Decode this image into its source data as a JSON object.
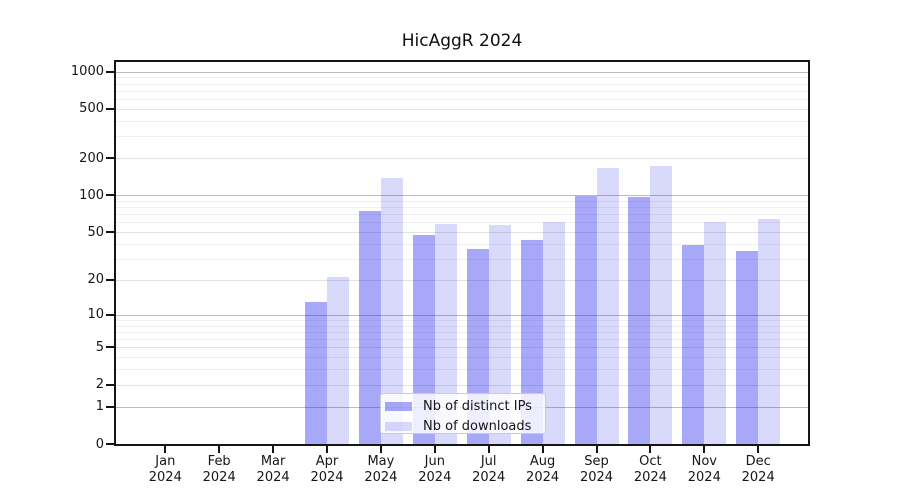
{
  "title": "HicAggR 2024",
  "chart_data": {
    "type": "bar",
    "title": "HicAggR 2024",
    "xlabel": "",
    "ylabel": "",
    "categories": [
      "Jan 2024",
      "Feb 2024",
      "Mar 2024",
      "Apr 2024",
      "May 2024",
      "Jun 2024",
      "Jul 2024",
      "Aug 2024",
      "Sep 2024",
      "Oct 2024",
      "Nov 2024",
      "Dec 2024"
    ],
    "series": [
      {
        "name": "Nb of distinct IPs",
        "color": "rgba(20,20,235,0.37)",
        "values": [
          0,
          0,
          0,
          13,
          74,
          47,
          36,
          43,
          99,
          97,
          39,
          35
        ]
      },
      {
        "name": "Nb of downloads",
        "color": "rgba(20,20,235,0.16)",
        "values": [
          0,
          0,
          0,
          21,
          138,
          58,
          57,
          61,
          168,
          173,
          61,
          64
        ]
      }
    ],
    "yscale": "log1p",
    "y_ticks": [
      0,
      1,
      2,
      5,
      10,
      20,
      50,
      100,
      200,
      500,
      1000
    ],
    "y_major_ticks": [
      1,
      10,
      100,
      1000
    ],
    "ylim": [
      0,
      1200
    ],
    "grid": "both",
    "legend_position": "lower center"
  },
  "colors": {
    "spine": "#161616",
    "major_grid": "#bdbdbd",
    "labeled_minor_grid": "#e2e2e2",
    "minor_grid": "#efefef",
    "legend_border": "#cccccc"
  }
}
